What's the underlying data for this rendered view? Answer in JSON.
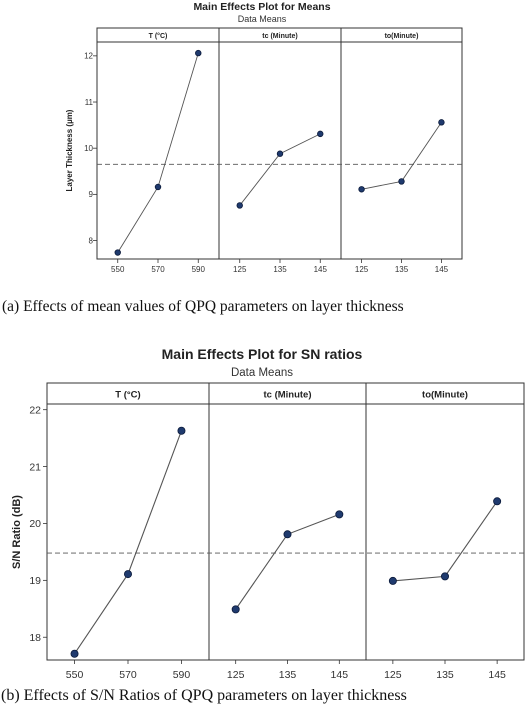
{
  "chart_data": [
    {
      "type": "line",
      "title": "Main Effects Plot for Means",
      "subtitle": "Data Means",
      "ylabel": "Layer Thickness (µm)",
      "ylim": [
        7.6,
        12.3
      ],
      "yticks": [
        "8",
        "9",
        "10",
        "11",
        "12"
      ],
      "reference_line": 9.65,
      "grid": false,
      "panels": [
        {
          "title": "T (°C)",
          "x": [
            "550",
            "570",
            "590"
          ],
          "values": [
            7.74,
            9.16,
            12.06
          ]
        },
        {
          "title": "tc (Minute)",
          "x": [
            "125",
            "135",
            "145"
          ],
          "values": [
            8.76,
            9.88,
            10.31
          ]
        },
        {
          "title": "to(Minute)",
          "x": [
            "125",
            "135",
            "145"
          ],
          "values": [
            9.11,
            9.28,
            10.56
          ]
        }
      ],
      "caption": "(a)  Effects of mean values of QPQ parameters on layer thickness"
    },
    {
      "type": "line",
      "title": "Main Effects Plot for SN ratios",
      "subtitle": "Data Means",
      "ylabel": "S/N Ratio (dB)",
      "ylim": [
        17.6,
        22.1
      ],
      "yticks": [
        "18",
        "19",
        "20",
        "21",
        "22"
      ],
      "reference_line": 19.48,
      "grid": false,
      "panels": [
        {
          "title": "T (°C)",
          "x": [
            "550",
            "570",
            "590"
          ],
          "values": [
            17.71,
            19.11,
            21.63
          ]
        },
        {
          "title": "tc (Minute)",
          "x": [
            "125",
            "135",
            "145"
          ],
          "values": [
            18.49,
            19.81,
            20.16
          ]
        },
        {
          "title": "to(Minute)",
          "x": [
            "125",
            "135",
            "145"
          ],
          "values": [
            18.99,
            19.07,
            20.39
          ]
        }
      ],
      "caption": "(b) Effects of S/N Ratios of QPQ parameters on layer thickness"
    }
  ],
  "colors": {
    "line": "#555555",
    "marker_fill": "#1f3a6e",
    "marker_stroke": "#0b1a3a",
    "reference": "#555555",
    "panel_header_fill": "#ffffff",
    "frame": "#333333"
  }
}
